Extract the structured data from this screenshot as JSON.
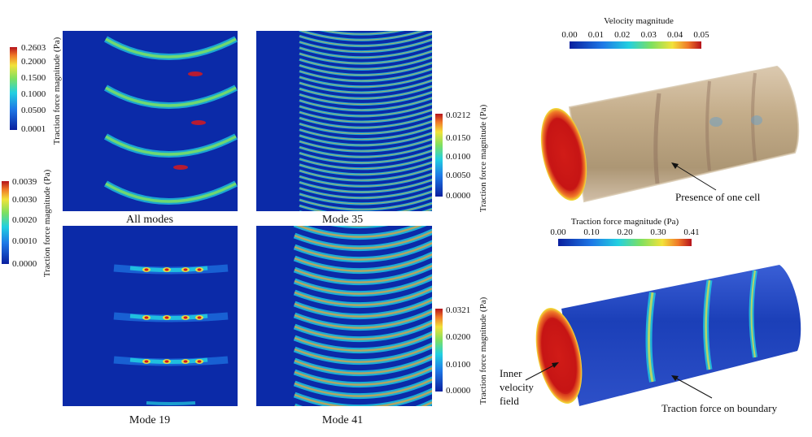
{
  "panels": {
    "all_modes": {
      "caption": "All modes"
    },
    "mode35": {
      "caption": "Mode 35"
    },
    "mode19": {
      "caption": "Mode 19"
    },
    "mode41": {
      "caption": "Mode 41"
    }
  },
  "colorbars": {
    "all_modes": {
      "label": "Traction force magnitude (Pa)",
      "ticks": [
        "0.2603",
        "0.2000",
        "0.1500",
        "0.1000",
        "0.0500",
        "0.0001"
      ]
    },
    "mode19": {
      "label": "Traction force magnitude (Pa)",
      "ticks": [
        "0.0039",
        "0.0030",
        "0.0020",
        "0.0010",
        "0.0000"
      ]
    },
    "mode35": {
      "label": "Traction force magnitude (Pa)",
      "ticks": [
        "0.0212",
        "0.0150",
        "0.0100",
        "0.0050",
        "0.0000"
      ]
    },
    "mode41": {
      "label": "Traction force magnitude (Pa)",
      "ticks": [
        "0.0321",
        "0.0200",
        "0.0100",
        "0.0000"
      ]
    },
    "velocity": {
      "title": "Velocity magnitude",
      "ticks": [
        "0.00",
        "0.01",
        "0.02",
        "0.03",
        "0.04",
        "0.05"
      ]
    },
    "traction3d": {
      "title": "Traction force magnitude (Pa)",
      "ticks": [
        "0.00",
        "0.10",
        "0.20",
        "0.30",
        "0.41"
      ]
    }
  },
  "annotations": {
    "cell": "Presence of one cell",
    "inner": [
      "Inner",
      "velocity",
      "field"
    ],
    "boundary": "Traction force on boundary"
  },
  "colors": {
    "deep_blue": "#0a1f9e",
    "cyan": "#22d0e0",
    "green": "#7ee060",
    "yellow": "#f2e23a",
    "red": "#d7191c",
    "dark_red": "#7a0c10",
    "tube_tan": "#b79a72"
  }
}
